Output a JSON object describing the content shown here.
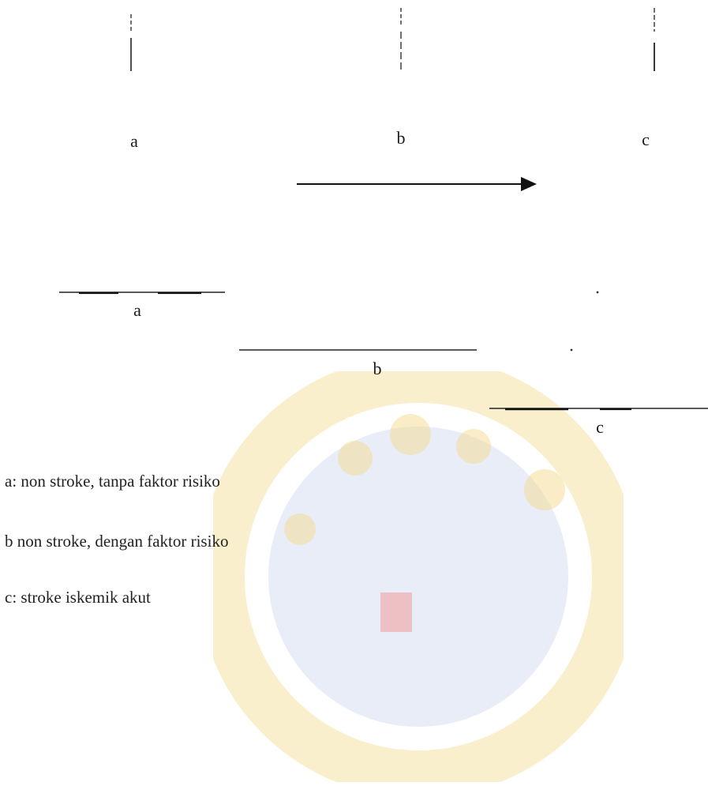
{
  "top_row": {
    "labels": [
      "a",
      "b",
      "c"
    ]
  },
  "mid_row": {
    "labels": [
      "a",
      "b",
      "c"
    ]
  },
  "legend": [
    "a: non stroke, tanpa faktor risiko",
    "b  non stroke, dengan faktor risiko",
    "c: stroke iskemik akut"
  ],
  "colors": {
    "ink": "#1a1a1a",
    "watermark_gold": "#f1cf6a",
    "watermark_blue": "#b8c7ea",
    "watermark_red": "#e88a8a"
  }
}
